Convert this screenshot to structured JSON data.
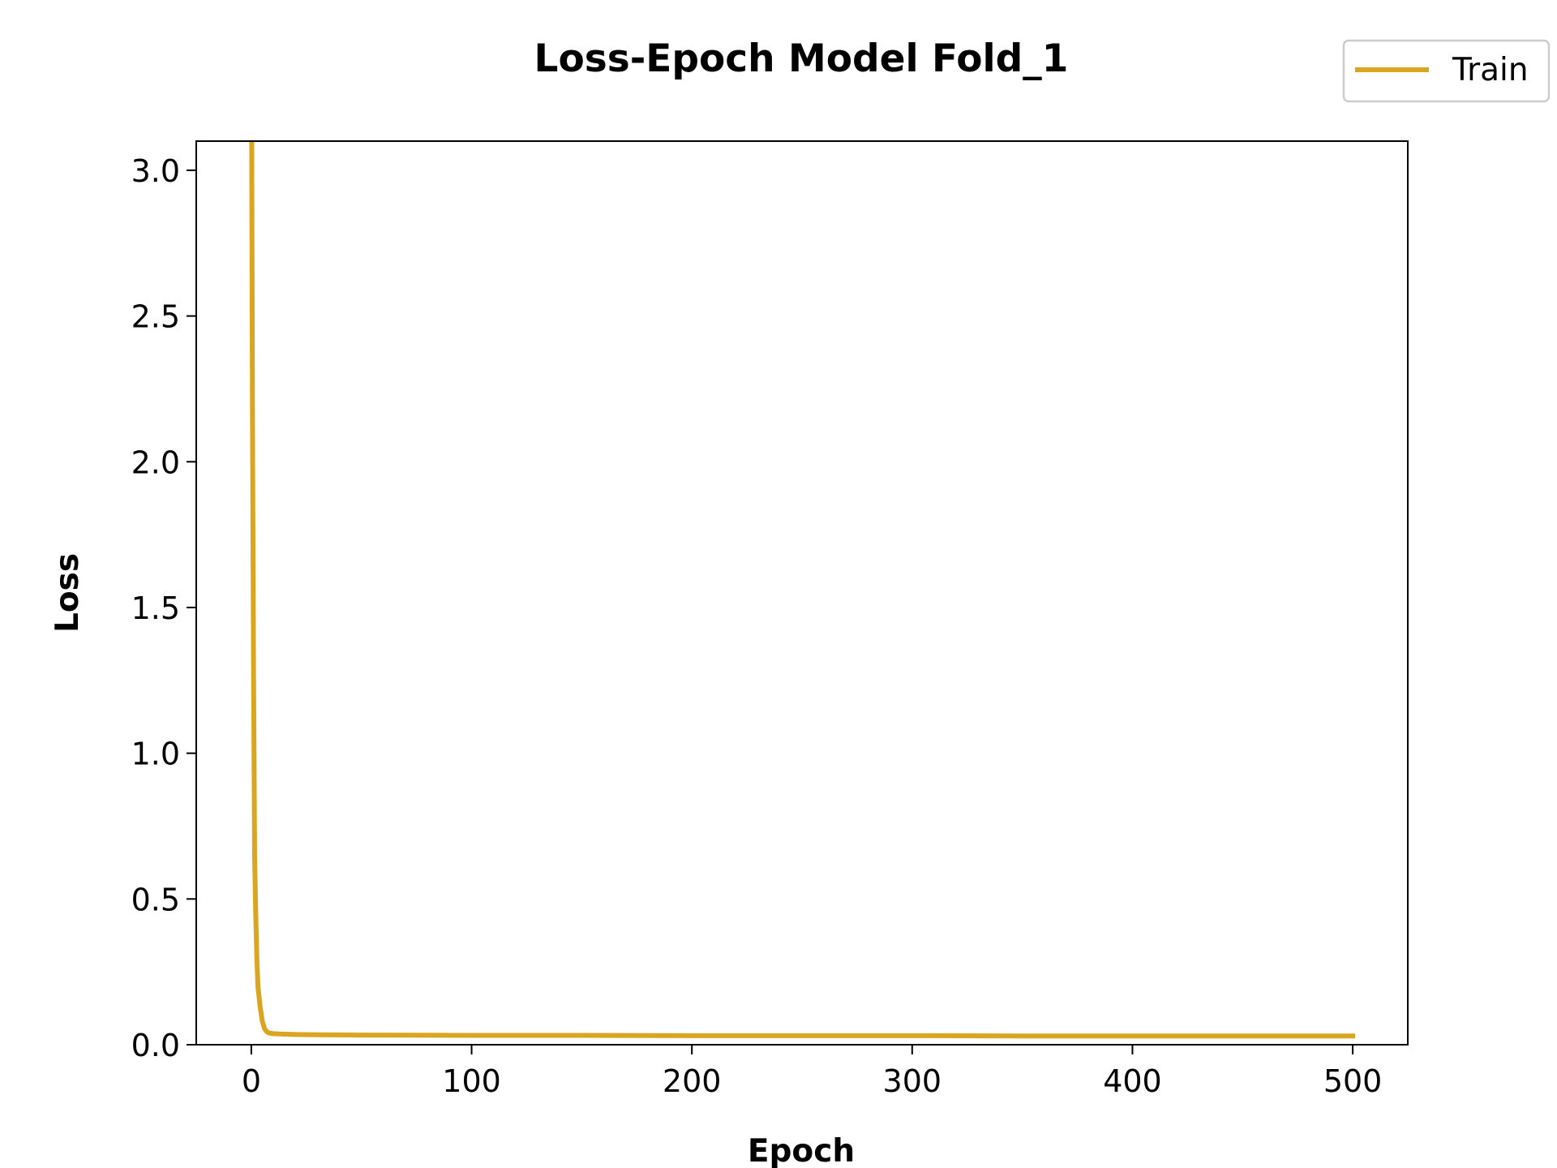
{
  "chart_data": {
    "type": "line",
    "title": "Loss-Epoch Model Fold_1",
    "xlabel": "Epoch",
    "ylabel": "Loss",
    "xlim": [
      -25,
      525
    ],
    "ylim": [
      0,
      3.1
    ],
    "xticks": [
      0,
      100,
      200,
      300,
      400,
      500
    ],
    "xtick_labels": [
      "0",
      "100",
      "200",
      "300",
      "400",
      "500"
    ],
    "yticks": [
      0.0,
      0.5,
      1.0,
      1.5,
      2.0,
      2.5,
      3.0
    ],
    "ytick_labels": [
      "0.0",
      "0.5",
      "1.0",
      "1.5",
      "2.0",
      "2.5",
      "3.0"
    ],
    "grid": false,
    "legend_position": "top-right (outside axes)",
    "series": [
      {
        "name": "Train",
        "color": "#DAA520",
        "x": [
          0,
          0.5,
          1,
          1.5,
          2,
          2.5,
          3,
          4,
          5,
          6,
          7,
          8,
          10,
          15,
          20,
          30,
          50,
          100,
          150,
          200,
          250,
          300,
          350,
          400,
          450,
          500
        ],
        "y": [
          3.6,
          2.2,
          1.3,
          0.65,
          0.45,
          0.3,
          0.2,
          0.13,
          0.08,
          0.055,
          0.045,
          0.04,
          0.038,
          0.036,
          0.035,
          0.034,
          0.033,
          0.032,
          0.032,
          0.031,
          0.031,
          0.031,
          0.03,
          0.03,
          0.03,
          0.03
        ]
      }
    ]
  }
}
